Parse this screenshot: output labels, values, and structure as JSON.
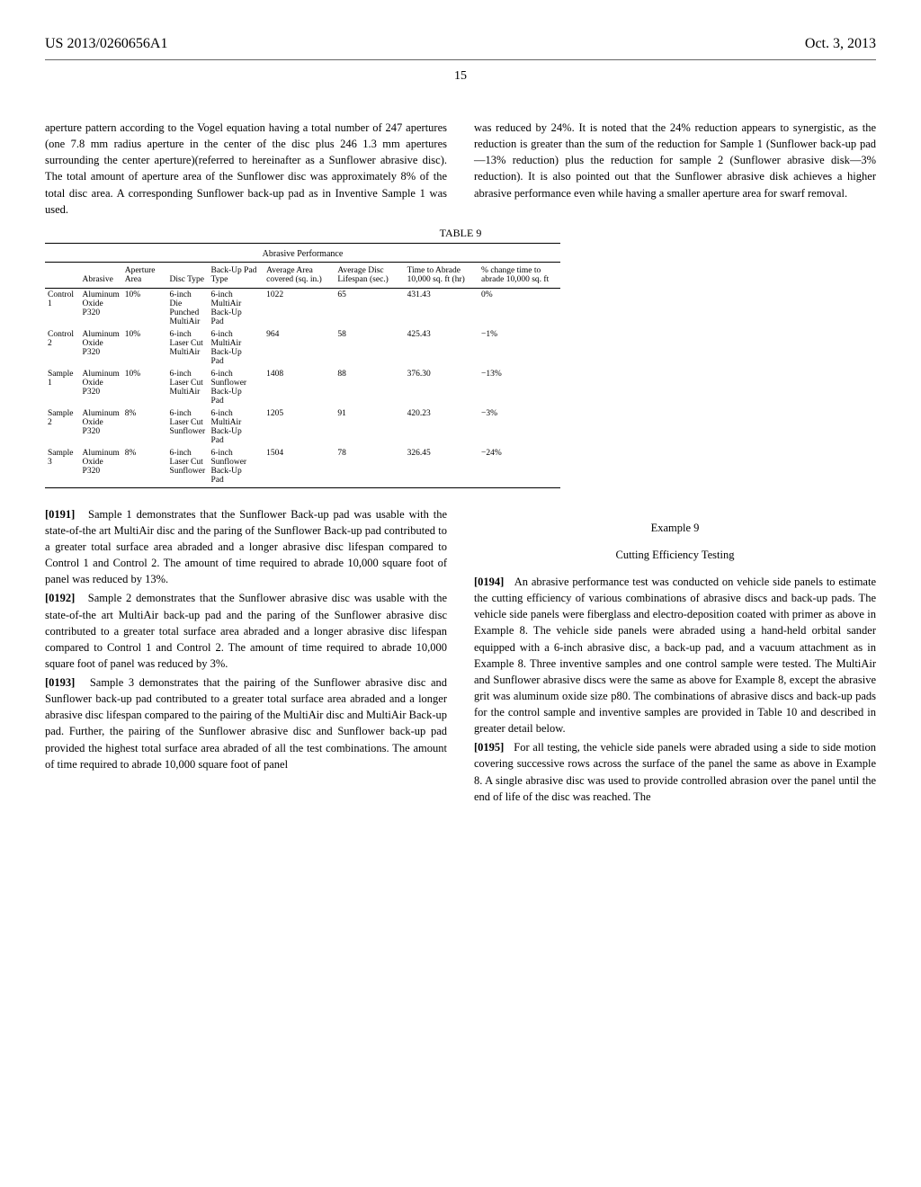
{
  "header": {
    "patent_number": "US 2013/0260656A1",
    "date": "Oct. 3, 2013"
  },
  "page_number": "15",
  "intro": {
    "left": "aperture pattern according to the Vogel equation having a total number of 247 apertures (one 7.8 mm radius aperture in the center of the disc plus 246 1.3 mm apertures surrounding the center aperture)(referred to hereinafter as a Sunflower abrasive disc). The total amount of aperture area of the Sunflower disc was approximately 8% of the total disc area. A corresponding Sunflower back-up pad as in Inventive Sample 1 was used.",
    "right": "was reduced by 24%. It is noted that the 24% reduction appears to synergistic, as the reduction is greater than the sum of the reduction for Sample 1 (Sunflower back-up pad—13% reduction) plus the reduction for sample 2 (Sunflower abrasive disk—3% reduction). It is also pointed out that the Sunflower abrasive disk achieves a higher abrasive performance even while having a smaller aperture area for swarf removal."
  },
  "table": {
    "label": "TABLE 9",
    "subtitle": "Abrasive Performance",
    "headers": [
      "",
      "Abrasive",
      "Aperture Area",
      "Disc Type",
      "Back-Up Pad Type",
      "Average Area covered (sq. in.)",
      "Average Disc Lifespan (sec.)",
      "Time to Abrade 10,000 sq. ft (hr)",
      "% change time to abrade 10,000 sq. ft"
    ],
    "rows": [
      [
        "Control 1",
        "Aluminum Oxide P320",
        "10%",
        "6-inch Die Punched MultiAir",
        "6-inch MultiAir Back-Up Pad",
        "1022",
        "65",
        "431.43",
        "0%"
      ],
      [
        "Control 2",
        "Aluminum Oxide P320",
        "10%",
        "6-inch Laser Cut MultiAir",
        "6-inch MultiAir Back-Up Pad",
        "964",
        "58",
        "425.43",
        "−1%"
      ],
      [
        "Sample 1",
        "Aluminum Oxide P320",
        "10%",
        "6-inch Laser Cut MultiAir",
        "6-inch Sunflower Back-Up Pad",
        "1408",
        "88",
        "376.30",
        "−13%"
      ],
      [
        "Sample 2",
        "Aluminum Oxide P320",
        "8%",
        "6-inch Laser Cut Sunflower",
        "6-inch MultiAir Back-Up Pad",
        "1205",
        "91",
        "420.23",
        "−3%"
      ],
      [
        "Sample 3",
        "Aluminum Oxide P320",
        "8%",
        "6-inch Laser Cut Sunflower",
        "6-inch Sunflower Back-Up Pad",
        "1504",
        "78",
        "326.45",
        "−24%"
      ]
    ]
  },
  "paragraphs": {
    "p0191": {
      "num": "[0191]",
      "text": "Sample 1 demonstrates that the Sunflower Back-up pad was usable with the state-of-the art MultiAir disc and the paring of the Sunflower Back-up pad contributed to a greater total surface area abraded and a longer abrasive disc lifespan compared to Control 1 and Control 2. The amount of time required to abrade 10,000 square foot of panel was reduced by 13%."
    },
    "p0192": {
      "num": "[0192]",
      "text": "Sample 2 demonstrates that the Sunflower abrasive disc was usable with the state-of-the art MultiAir back-up pad and the paring of the Sunflower abrasive disc contributed to a greater total surface area abraded and a longer abrasive disc lifespan compared to Control 1 and Control 2. The amount of time required to abrade 10,000 square foot of panel was reduced by 3%."
    },
    "p0193": {
      "num": "[0193]",
      "text": "Sample 3 demonstrates that the pairing of the Sunflower abrasive disc and Sunflower back-up pad contributed to a greater total surface area abraded and a longer abrasive disc lifespan compared to the pairing of the MultiAir disc and MultiAir Back-up pad. Further, the pairing of the Sunflower abrasive disc and Sunflower back-up pad provided the highest total surface area abraded of all the test combinations. The amount of time required to abrade 10,000 square foot of panel"
    },
    "p0194": {
      "num": "[0194]",
      "text": "An abrasive performance test was conducted on vehicle side panels to estimate the cutting efficiency of various combinations of abrasive discs and back-up pads. The vehicle side panels were fiberglass and electro-deposition coated with primer as above in Example 8. The vehicle side panels were abraded using a hand-held orbital sander equipped with a 6-inch abrasive disc, a back-up pad, and a vacuum attachment as in Example 8. Three inventive samples and one control sample were tested. The MultiAir and Sunflower abrasive discs were the same as above for Example 8, except the abrasive grit was aluminum oxide size p80. The combinations of abrasive discs and back-up pads for the control sample and inventive samples are provided in Table 10 and described in greater detail below."
    },
    "p0195": {
      "num": "[0195]",
      "text": "For all testing, the vehicle side panels were abraded using a side to side motion covering successive rows across the surface of the panel the same as above in Example 8. A single abrasive disc was used to provide controlled abrasion over the panel until the end of life of the disc was reached. The"
    }
  },
  "example": {
    "number": "Example 9",
    "subtitle": "Cutting Efficiency Testing"
  }
}
